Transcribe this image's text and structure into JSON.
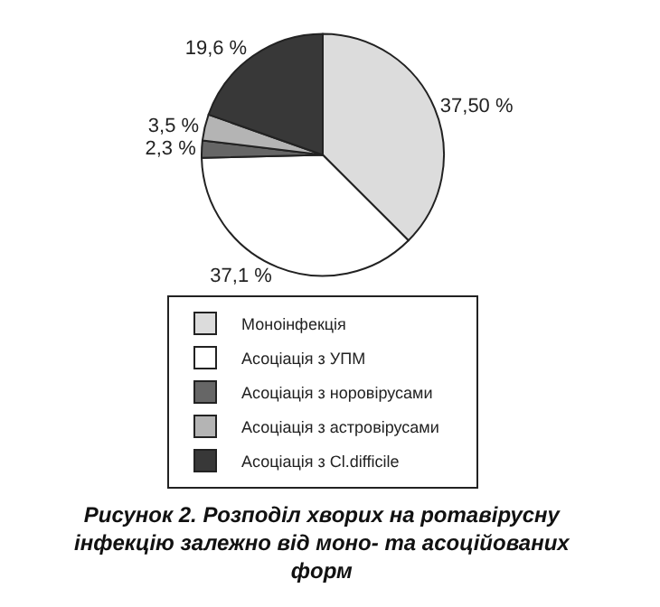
{
  "chart_data": {
    "type": "pie",
    "title": "Рисунок 2. Розподіл хворих на ротавірусну інфекцію залежно від моно- та асоційованих форм",
    "categories": [
      "Моноінфекція",
      "Асоціація з УПМ",
      "Асоціація з норовірусами",
      "Асоціація з астровірусами",
      "Асоціація з Cl.difficile"
    ],
    "values": [
      37.5,
      37.1,
      2.3,
      3.5,
      19.6
    ],
    "value_labels": [
      "37,50 %",
      "37,1 %",
      "2,3 %",
      "3,5 %",
      "19,6 %"
    ],
    "colors": [
      "#dcdcdc",
      "#ffffff",
      "#666666",
      "#b4b4b4",
      "#383838"
    ],
    "legend": "bottom"
  }
}
